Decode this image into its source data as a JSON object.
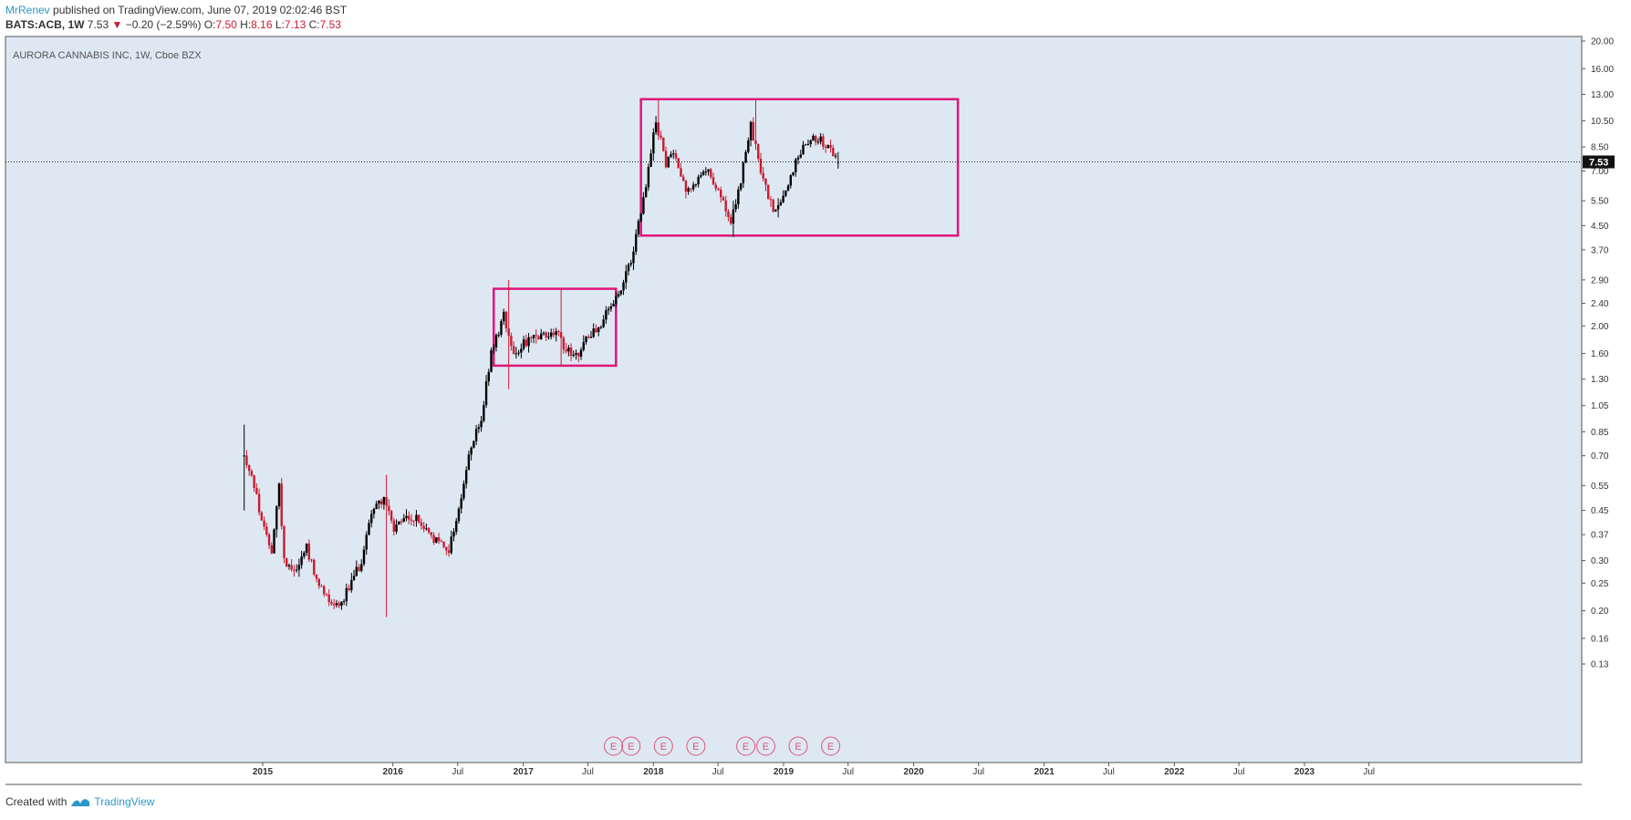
{
  "header": {
    "author": "MrRenev",
    "published": " published on TradingView.com, June 07, 2019 02:02:46 BST",
    "symbol_line": "BATS:ACB, 1W",
    "last": "7.53",
    "change_arrow": "▼",
    "change": "−0.20 (−2.59%)",
    "o_key": "O:",
    "o_val": "7.50",
    "h_key": "H:",
    "h_val": "8.16",
    "l_key": "L:",
    "l_val": "7.13",
    "c_key": "C:",
    "c_val": "7.53"
  },
  "footer": {
    "created_with": "Created with",
    "brand": "TradingView"
  },
  "chart_data": {
    "type": "candlestick",
    "title": "AURORA CANNABIS INC, 1W, Cboe BZX",
    "scale": "log",
    "ylim": [
      0.13,
      20.0
    ],
    "y_ticks": [
      "20.00",
      "16.00",
      "13.00",
      "10.50",
      "8.50",
      "7.00",
      "5.50",
      "4.50",
      "3.70",
      "2.90",
      "2.40",
      "2.00",
      "1.60",
      "1.30",
      "1.05",
      "0.85",
      "0.70",
      "0.55",
      "0.45",
      "0.37",
      "0.30",
      "0.25",
      "0.20",
      "0.16",
      "0.13"
    ],
    "x_ticks": [
      {
        "label": "2015",
        "year": true,
        "date": "2015-01"
      },
      {
        "label": "2016",
        "year": true,
        "date": "2016-01"
      },
      {
        "label": "Jul",
        "year": false,
        "date": "2016-07"
      },
      {
        "label": "2017",
        "year": true,
        "date": "2017-01"
      },
      {
        "label": "Jul",
        "year": false,
        "date": "2017-07"
      },
      {
        "label": "2018",
        "year": true,
        "date": "2018-01"
      },
      {
        "label": "Jul",
        "year": false,
        "date": "2018-07"
      },
      {
        "label": "2019",
        "year": true,
        "date": "2019-01"
      },
      {
        "label": "Jul",
        "year": false,
        "date": "2019-07"
      },
      {
        "label": "2020",
        "year": true,
        "date": "2020-01"
      },
      {
        "label": "Jul",
        "year": false,
        "date": "2020-07"
      },
      {
        "label": "2021",
        "year": true,
        "date": "2021-01"
      },
      {
        "label": "Jul",
        "year": false,
        "date": "2021-07"
      },
      {
        "label": "2022",
        "year": true,
        "date": "2022-01"
      },
      {
        "label": "Jul",
        "year": false,
        "date": "2022-07"
      },
      {
        "label": "2023",
        "year": true,
        "date": "2023-01"
      },
      {
        "label": "Jul",
        "year": false,
        "date": "2023-07"
      }
    ],
    "last_price": 7.53,
    "last_price_label": "7.53",
    "price_path": [
      [
        "2014-11-10",
        0.7
      ],
      [
        "2014-12-01",
        0.6
      ],
      [
        "2015-01-05",
        0.38
      ],
      [
        "2015-01-26",
        0.33
      ],
      [
        "2015-02-16",
        0.55
      ],
      [
        "2015-03-02",
        0.3
      ],
      [
        "2015-04-06",
        0.28
      ],
      [
        "2015-05-04",
        0.34
      ],
      [
        "2015-06-01",
        0.25
      ],
      [
        "2015-07-06",
        0.22
      ],
      [
        "2015-08-03",
        0.21
      ],
      [
        "2015-09-07",
        0.25
      ],
      [
        "2015-10-05",
        0.3
      ],
      [
        "2015-11-02",
        0.45
      ],
      [
        "2015-12-07",
        0.5
      ],
      [
        "2016-01-04",
        0.38
      ],
      [
        "2016-02-01",
        0.42
      ],
      [
        "2016-03-07",
        0.42
      ],
      [
        "2016-04-04",
        0.38
      ],
      [
        "2016-05-02",
        0.35
      ],
      [
        "2016-06-06",
        0.33
      ],
      [
        "2016-07-04",
        0.45
      ],
      [
        "2016-08-01",
        0.7
      ],
      [
        "2016-09-05",
        0.95
      ],
      [
        "2016-10-03",
        1.6
      ],
      [
        "2016-11-07",
        2.2
      ],
      [
        "2016-12-05",
        1.6
      ],
      [
        "2017-01-02",
        1.75
      ],
      [
        "2017-02-06",
        1.8
      ],
      [
        "2017-03-06",
        1.85
      ],
      [
        "2017-04-03",
        1.9
      ],
      [
        "2017-05-01",
        1.65
      ],
      [
        "2017-06-05",
        1.6
      ],
      [
        "2017-07-03",
        1.85
      ],
      [
        "2017-08-07",
        2.05
      ],
      [
        "2017-09-04",
        2.35
      ],
      [
        "2017-10-02",
        2.6
      ],
      [
        "2017-11-06",
        3.7
      ],
      [
        "2017-12-04",
        5.5
      ],
      [
        "2018-01-08",
        10.5
      ],
      [
        "2018-02-05",
        7.5
      ],
      [
        "2018-03-05",
        8.0
      ],
      [
        "2018-04-02",
        6.0
      ],
      [
        "2018-05-07",
        6.5
      ],
      [
        "2018-06-04",
        7.0
      ],
      [
        "2018-07-02",
        6.0
      ],
      [
        "2018-08-06",
        4.5
      ],
      [
        "2018-09-03",
        6.5
      ],
      [
        "2018-10-01",
        10.0
      ],
      [
        "2018-11-05",
        6.5
      ],
      [
        "2018-12-03",
        5.0
      ],
      [
        "2019-01-07",
        6.0
      ],
      [
        "2019-02-04",
        7.5
      ],
      [
        "2019-03-04",
        9.0
      ],
      [
        "2019-04-01",
        9.2
      ],
      [
        "2019-05-06",
        8.5
      ],
      [
        "2019-06-03",
        7.53
      ]
    ],
    "high_low_extremes": [
      {
        "date": "2014-11-10",
        "high": 0.9,
        "low": 0.45
      },
      {
        "date": "2015-12-14",
        "high": 0.6,
        "low": 0.19
      },
      {
        "date": "2016-11-21",
        "high": 2.9,
        "low": 1.2
      },
      {
        "date": "2017-04-17",
        "high": 2.7,
        "low": 1.45
      },
      {
        "date": "2018-01-15",
        "high": 12.5,
        "low": 9.0
      },
      {
        "date": "2018-08-13",
        "high": 5.5,
        "low": 4.1
      },
      {
        "date": "2018-10-15",
        "high": 12.5,
        "low": 8.5
      },
      {
        "date": "2019-06-03",
        "high": 8.16,
        "low": 7.13
      }
    ],
    "ranges": [
      {
        "from": "2016-10-10",
        "to": "2017-09-18",
        "top": 2.7,
        "bottom": 1.45,
        "color": "#e0157a"
      },
      {
        "from": "2017-11-27",
        "to": "2020-05-04",
        "top": 12.5,
        "bottom": 4.15,
        "color": "#e0157a"
      }
    ],
    "earnings": [
      {
        "date": "2017-09-11",
        "label": "E"
      },
      {
        "date": "2017-10-30",
        "label": "E"
      },
      {
        "date": "2018-01-29",
        "label": "E"
      },
      {
        "date": "2018-04-30",
        "label": "E"
      },
      {
        "date": "2018-09-17",
        "label": "E"
      },
      {
        "date": "2018-11-12",
        "label": "E"
      },
      {
        "date": "2019-02-11",
        "label": "E"
      },
      {
        "date": "2019-05-13",
        "label": "E"
      }
    ],
    "colors": {
      "background": "#dde8f3",
      "up": "#000000",
      "down": "#cc1a2f",
      "range": "#e0157a",
      "earnings": "#e0557a",
      "axis": "#555555"
    },
    "grid": false
  }
}
